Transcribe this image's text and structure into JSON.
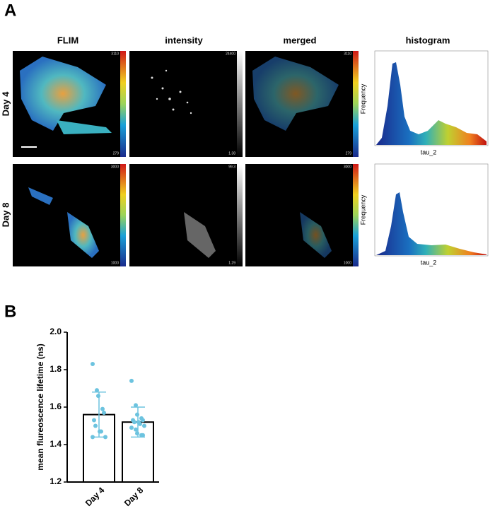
{
  "panel_a": {
    "label": "A",
    "columns": [
      "FLIM",
      "intensity",
      "merged",
      "histogram"
    ],
    "rows": [
      {
        "label": "Day 4",
        "flim_scale": [
          "3110",
          "279"
        ],
        "intensity_scale": [
          "24400",
          "1.38"
        ],
        "merged_scale": [
          "3110",
          "279"
        ]
      },
      {
        "label": "Day 8",
        "flim_scale": [
          "3000",
          "1000"
        ],
        "intensity_scale": [
          "99.3",
          "1.29"
        ],
        "merged_scale": [
          "3000",
          "1000"
        ]
      }
    ],
    "histogram_ylabel": "Frequency",
    "histogram_xlabel": "tau_2"
  },
  "chart_data": {
    "type": "bar",
    "panel_label": "B",
    "ylabel": "mean flureoscence lifetime (ns)",
    "categories": [
      "Day 4",
      "Day 8"
    ],
    "values": [
      1.56,
      1.52
    ],
    "errors": [
      0.12,
      0.08
    ],
    "points": [
      [
        1.83,
        1.69,
        1.66,
        1.59,
        1.57,
        1.53,
        1.5,
        1.47,
        1.47,
        1.44,
        1.44
      ],
      [
        1.74,
        1.61,
        1.56,
        1.54,
        1.53,
        1.53,
        1.52,
        1.52,
        1.51,
        1.5,
        1.49,
        1.48,
        1.46,
        1.45,
        1.45
      ]
    ],
    "bar_color": "#ffffff",
    "point_color": "#6cc3df",
    "ylim": [
      1.2,
      2.0
    ],
    "yticks": [
      1.2,
      1.4,
      1.6,
      1.8,
      {
        "value": 2.0,
        "label": "2.0"
      }
    ]
  }
}
